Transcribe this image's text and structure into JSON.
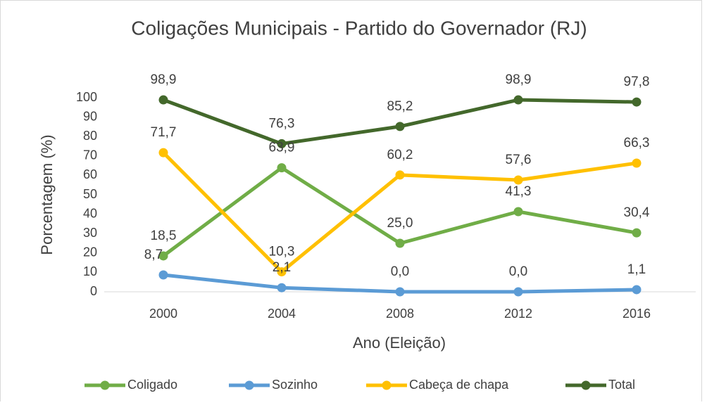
{
  "chart_data": {
    "type": "line",
    "title": "Coligações Municipais - Partido do Governador (RJ)",
    "x_label": "Ano (Eleição)",
    "y_label": "Porcentagem (%)",
    "categories": [
      "2000",
      "2004",
      "2008",
      "2012",
      "2016"
    ],
    "series": [
      {
        "name": "Coligado",
        "color": "#70ad47",
        "values": [
          18.5,
          63.9,
          25.0,
          41.3,
          30.4
        ],
        "value_labels": [
          "18,5",
          "63,9",
          "25,0",
          "41,3",
          "30,4"
        ]
      },
      {
        "name": "Sozinho",
        "color": "#5b9bd5",
        "values": [
          8.7,
          2.1,
          0.0,
          0.0,
          1.1
        ],
        "value_labels": [
          "8,7",
          "2,1",
          "0,0",
          "0,0",
          "1,1"
        ]
      },
      {
        "name": "Cabeça de chapa",
        "color": "#ffc000",
        "values": [
          71.7,
          10.3,
          60.2,
          57.6,
          66.3
        ],
        "value_labels": [
          "71,7",
          "10,3",
          "60,2",
          "57,6",
          "66,3"
        ]
      },
      {
        "name": "Total",
        "color": "#43682b",
        "values": [
          98.9,
          76.3,
          85.2,
          98.9,
          97.8
        ],
        "value_labels": [
          "98,9",
          "76,3",
          "85,2",
          "98,9",
          "97,8"
        ]
      }
    ],
    "ylim": [
      0,
      100
    ],
    "yticks": [
      0,
      10,
      20,
      30,
      40,
      50,
      60,
      70,
      80,
      90,
      100
    ],
    "grid": false,
    "legend": "bottom"
  }
}
